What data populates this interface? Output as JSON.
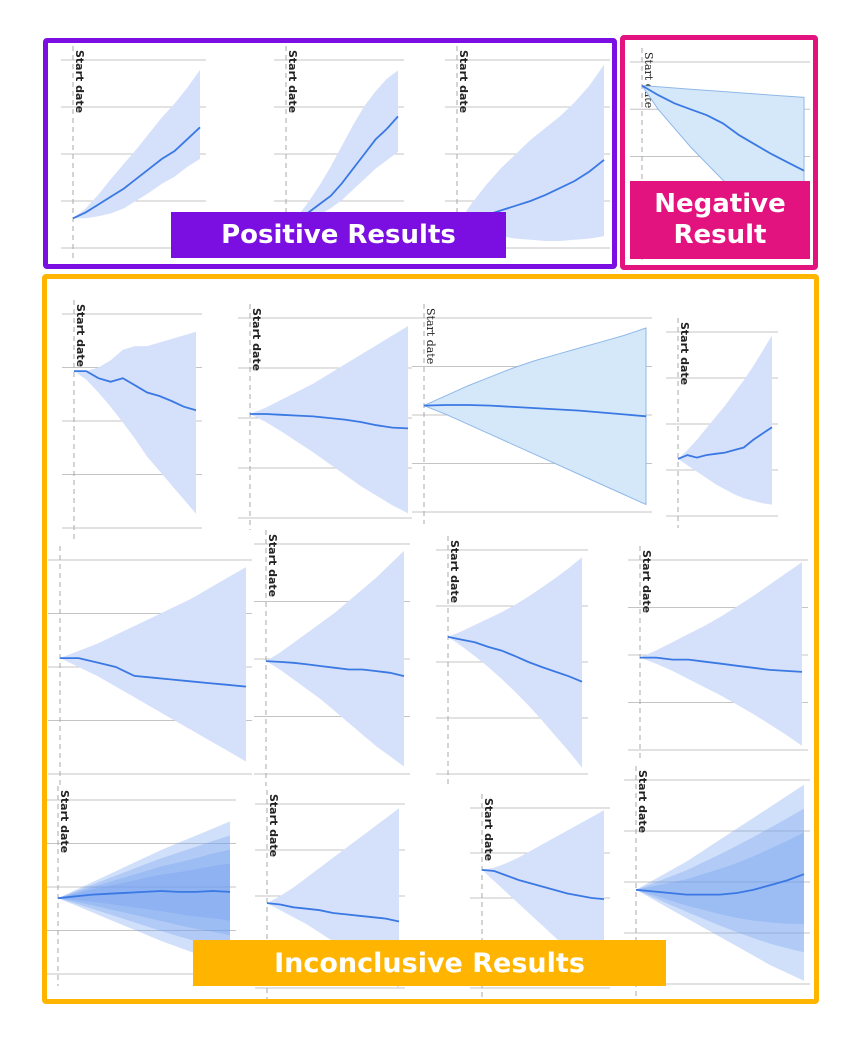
{
  "labels": {
    "positive": "Positive Results",
    "negative_line1": "Negative",
    "negative_line2": "Result",
    "inconclusive": "Inconclusive Results",
    "start_date": "Start date"
  },
  "colors": {
    "positive": "#7b0ee0",
    "negative": "#e2137f",
    "inconclusive": "#ffb500",
    "band_light": "#d5e1fb",
    "band_alt": "#d5e8fa",
    "line": "#3a78e3",
    "grid": "#c4c4c4"
  },
  "chart_data": [
    {
      "group": "positive",
      "type": "area",
      "title": "",
      "xlabel": "",
      "ylabel": "",
      "start_marker": "Start date",
      "x": [
        0,
        1,
        2,
        3,
        4,
        5,
        6,
        7,
        8,
        9,
        10
      ],
      "y": [
        0,
        0.06,
        0.14,
        0.22,
        0.3,
        0.4,
        0.5,
        0.6,
        0.68,
        0.8,
        0.92
      ],
      "lower": [
        0,
        0.0,
        0.02,
        0.05,
        0.1,
        0.18,
        0.26,
        0.35,
        0.42,
        0.52,
        0.6
      ],
      "upper": [
        0,
        0.1,
        0.24,
        0.4,
        0.55,
        0.7,
        0.86,
        1.02,
        1.16,
        1.32,
        1.5
      ],
      "ylim": [
        -0.3,
        1.6
      ]
    },
    {
      "group": "positive",
      "type": "area",
      "title": "",
      "xlabel": "",
      "ylabel": "",
      "start_marker": "Start date",
      "x": [
        0,
        1,
        2,
        3,
        4,
        5,
        6,
        7,
        8,
        9,
        10
      ],
      "y": [
        0,
        0.06,
        0.14,
        0.22,
        0.3,
        0.42,
        0.56,
        0.7,
        0.84,
        0.94,
        1.06
      ],
      "lower": [
        0,
        0.02,
        0.06,
        0.12,
        0.18,
        0.26,
        0.36,
        0.46,
        0.56,
        0.64,
        0.72
      ],
      "upper": [
        0,
        0.1,
        0.24,
        0.4,
        0.58,
        0.78,
        0.98,
        1.16,
        1.3,
        1.42,
        1.5
      ],
      "ylim": [
        -0.2,
        1.6
      ]
    },
    {
      "group": "positive",
      "type": "area",
      "title": "",
      "xlabel": "",
      "ylabel": "",
      "start_marker": "Start date",
      "x": [
        0,
        1,
        2,
        3,
        4,
        5,
        6,
        7,
        8,
        9,
        10
      ],
      "y": [
        0,
        0.04,
        0.08,
        0.12,
        0.16,
        0.2,
        0.25,
        0.31,
        0.37,
        0.45,
        0.55
      ],
      "lower": [
        0,
        -0.04,
        -0.08,
        -0.1,
        -0.12,
        -0.13,
        -0.14,
        -0.14,
        -0.13,
        -0.12,
        -0.1
      ],
      "upper": [
        0,
        0.18,
        0.34,
        0.48,
        0.6,
        0.72,
        0.82,
        0.92,
        1.04,
        1.18,
        1.36
      ],
      "ylim": [
        -0.2,
        1.4
      ]
    },
    {
      "group": "negative",
      "type": "area",
      "title": "",
      "xlabel": "",
      "ylabel": "",
      "start_marker": "Start date",
      "x": [
        0,
        1,
        2,
        3,
        4,
        5,
        6,
        7,
        8,
        9,
        10
      ],
      "y": [
        0,
        -0.08,
        -0.15,
        -0.2,
        -0.25,
        -0.32,
        -0.42,
        -0.5,
        -0.58,
        -0.65,
        -0.72
      ],
      "lower": [
        0,
        -0.2,
        -0.36,
        -0.52,
        -0.66,
        -0.8,
        -0.94,
        -1.05,
        -1.15,
        -1.24,
        -1.32
      ],
      "upper": [
        0,
        -0.01,
        -0.02,
        -0.03,
        -0.04,
        -0.05,
        -0.06,
        -0.07,
        -0.08,
        -0.09,
        -0.1
      ],
      "ylim": [
        -1.4,
        0.2
      ]
    },
    {
      "group": "inconclusive",
      "type": "area",
      "title": "",
      "xlabel": "",
      "ylabel": "",
      "start_marker": "Start date",
      "x": [
        0,
        1,
        2,
        3,
        4,
        5,
        6,
        7,
        8,
        9,
        10
      ],
      "y": [
        0,
        0,
        -0.1,
        -0.15,
        -0.1,
        -0.2,
        -0.3,
        -0.35,
        -0.42,
        -0.5,
        -0.55
      ],
      "lower": [
        0,
        -0.12,
        -0.3,
        -0.5,
        -0.72,
        -0.95,
        -1.2,
        -1.4,
        -1.6,
        -1.8,
        -2.0
      ],
      "upper": [
        0,
        0.0,
        0.05,
        0.15,
        0.3,
        0.35,
        0.35,
        0.4,
        0.45,
        0.5,
        0.55
      ],
      "ylim": [
        -2.2,
        0.8
      ]
    },
    {
      "group": "inconclusive",
      "type": "area",
      "title": "",
      "xlabel": "",
      "ylabel": "",
      "start_marker": "Start date",
      "x": [
        0,
        1,
        2,
        3,
        4,
        5,
        6,
        7,
        8,
        9,
        10
      ],
      "y": [
        0,
        0,
        -0.01,
        -0.02,
        -0.03,
        -0.05,
        -0.07,
        -0.1,
        -0.14,
        -0.17,
        -0.18
      ],
      "lower": [
        0,
        -0.1,
        -0.22,
        -0.35,
        -0.48,
        -0.62,
        -0.76,
        -0.9,
        -1.02,
        -1.14,
        -1.24
      ],
      "upper": [
        0,
        0.08,
        0.18,
        0.28,
        0.38,
        0.5,
        0.62,
        0.74,
        0.86,
        0.98,
        1.1
      ],
      "ylim": [
        -1.3,
        1.2
      ]
    },
    {
      "group": "inconclusive",
      "type": "area",
      "title": "",
      "xlabel": "",
      "ylabel": "",
      "start_marker": "Start date",
      "x": [
        0,
        1,
        2,
        3,
        4,
        5,
        6,
        7,
        8,
        9,
        10
      ],
      "y": [
        0,
        0.01,
        0.01,
        0.0,
        -0.02,
        -0.04,
        -0.06,
        -0.08,
        -0.11,
        -0.14,
        -0.17
      ],
      "lower": [
        0,
        -0.14,
        -0.3,
        -0.46,
        -0.62,
        -0.78,
        -0.94,
        -1.1,
        -1.26,
        -1.42,
        -1.58
      ],
      "upper": [
        0,
        0.16,
        0.32,
        0.46,
        0.6,
        0.72,
        0.82,
        0.92,
        1.02,
        1.12,
        1.24
      ],
      "ylim": [
        -1.7,
        1.4
      ]
    },
    {
      "group": "inconclusive",
      "type": "area",
      "title": "",
      "xlabel": "",
      "ylabel": "",
      "start_marker": "Start date",
      "x": [
        0,
        1,
        2,
        3,
        4,
        5,
        6,
        7,
        8,
        9,
        10
      ],
      "y": [
        0,
        0.06,
        0.02,
        0.06,
        0.08,
        0.1,
        0.14,
        0.18,
        0.3,
        0.4,
        0.5
      ],
      "lower": [
        0,
        -0.1,
        -0.2,
        -0.3,
        -0.4,
        -0.48,
        -0.56,
        -0.62,
        -0.66,
        -0.7,
        -0.72
      ],
      "upper": [
        0,
        0.14,
        0.3,
        0.48,
        0.66,
        0.84,
        1.04,
        1.24,
        1.46,
        1.7,
        1.95
      ],
      "ylim": [
        -0.9,
        2.0
      ]
    },
    {
      "group": "inconclusive",
      "type": "area",
      "title": "",
      "xlabel": "",
      "ylabel": "",
      "start_marker": "",
      "x": [
        0,
        1,
        2,
        3,
        4,
        5,
        6,
        7,
        8,
        9,
        10
      ],
      "y": [
        0,
        0.0,
        -0.05,
        -0.1,
        -0.2,
        -0.22,
        -0.24,
        -0.26,
        -0.28,
        -0.3,
        -0.32
      ],
      "lower": [
        0,
        -0.1,
        -0.2,
        -0.32,
        -0.44,
        -0.56,
        -0.68,
        -0.8,
        -0.92,
        -1.04,
        -1.16
      ],
      "upper": [
        0,
        0.08,
        0.16,
        0.26,
        0.36,
        0.46,
        0.56,
        0.66,
        0.78,
        0.9,
        1.02
      ],
      "ylim": [
        -1.3,
        1.1
      ]
    },
    {
      "group": "inconclusive",
      "type": "area",
      "title": "",
      "xlabel": "",
      "ylabel": "",
      "start_marker": "Start date",
      "x": [
        0,
        1,
        2,
        3,
        4,
        5,
        6,
        7,
        8,
        9,
        10
      ],
      "y": [
        0,
        -0.01,
        -0.02,
        -0.04,
        -0.06,
        -0.08,
        -0.1,
        -0.1,
        -0.12,
        -0.14,
        -0.18
      ],
      "lower": [
        0,
        -0.1,
        -0.22,
        -0.34,
        -0.46,
        -0.6,
        -0.74,
        -0.88,
        -1.02,
        -1.14,
        -1.26
      ],
      "upper": [
        0,
        0.1,
        0.22,
        0.34,
        0.46,
        0.58,
        0.72,
        0.86,
        1.0,
        1.16,
        1.32
      ],
      "ylim": [
        -1.35,
        1.4
      ]
    },
    {
      "group": "inconclusive",
      "type": "area",
      "title": "",
      "xlabel": "",
      "ylabel": "",
      "start_marker": "Start date",
      "x": [
        0,
        1,
        2,
        3,
        4,
        5,
        6,
        7,
        8,
        9,
        10
      ],
      "y": [
        0,
        -0.06,
        -0.12,
        -0.22,
        -0.3,
        -0.42,
        -0.55,
        -0.66,
        -0.76,
        -0.86,
        -0.98
      ],
      "lower": [
        0,
        -0.2,
        -0.42,
        -0.66,
        -0.92,
        -1.2,
        -1.5,
        -1.82,
        -2.16,
        -2.5,
        -2.86
      ],
      "upper": [
        0,
        0.12,
        0.26,
        0.4,
        0.54,
        0.7,
        0.88,
        1.08,
        1.28,
        1.5,
        1.74
      ],
      "ylim": [
        -3.0,
        1.9
      ]
    },
    {
      "group": "inconclusive",
      "type": "area",
      "title": "",
      "xlabel": "",
      "ylabel": "",
      "start_marker": "Start date",
      "x": [
        0,
        1,
        2,
        3,
        4,
        5,
        6,
        7,
        8,
        9,
        10
      ],
      "y": [
        0,
        0.0,
        -0.04,
        -0.04,
        -0.08,
        -0.12,
        -0.16,
        -0.2,
        -0.24,
        -0.26,
        -0.28
      ],
      "lower": [
        0,
        -0.12,
        -0.26,
        -0.42,
        -0.58,
        -0.74,
        -0.92,
        -1.1,
        -1.3,
        -1.5,
        -1.72
      ],
      "upper": [
        0,
        0.14,
        0.3,
        0.46,
        0.62,
        0.8,
        1.0,
        1.2,
        1.42,
        1.64,
        1.86
      ],
      "ylim": [
        -1.8,
        1.9
      ]
    },
    {
      "group": "inconclusive",
      "type": "area",
      "title": "",
      "xlabel": "",
      "ylabel": "",
      "start_marker": "Start date",
      "x": [
        0,
        1,
        2,
        3,
        4,
        5,
        6,
        7,
        8,
        9,
        10
      ],
      "y": [
        0,
        0.02,
        0.04,
        0.05,
        0.06,
        0.07,
        0.08,
        0.07,
        0.07,
        0.08,
        0.07
      ],
      "lower": [
        0,
        -0.08,
        -0.16,
        -0.24,
        -0.32,
        -0.4,
        -0.48,
        -0.55,
        -0.62,
        -0.68,
        -0.74
      ],
      "upper": [
        0,
        0.09,
        0.18,
        0.27,
        0.36,
        0.45,
        0.54,
        0.62,
        0.7,
        0.78,
        0.86
      ],
      "ylim": [
        -0.85,
        1.1
      ]
    },
    {
      "group": "inconclusive",
      "type": "area",
      "title": "",
      "xlabel": "",
      "ylabel": "",
      "start_marker": "Start date",
      "x": [
        0,
        1,
        2,
        3,
        4,
        5,
        6,
        7,
        8,
        9,
        10
      ],
      "y": [
        0,
        -0.02,
        -0.06,
        -0.08,
        -0.1,
        -0.14,
        -0.16,
        -0.18,
        -0.2,
        -0.22,
        -0.26
      ],
      "lower": [
        0,
        -0.1,
        -0.2,
        -0.3,
        -0.42,
        -0.54,
        -0.66,
        -0.78,
        -0.92,
        -1.06,
        -1.2
      ],
      "upper": [
        0,
        0.1,
        0.22,
        0.36,
        0.5,
        0.64,
        0.78,
        0.92,
        1.06,
        1.2,
        1.34
      ],
      "ylim": [
        -1.2,
        1.4
      ]
    },
    {
      "group": "inconclusive",
      "type": "area",
      "title": "",
      "xlabel": "",
      "ylabel": "",
      "start_marker": "Start date",
      "x": [
        0,
        1,
        2,
        3,
        4,
        5,
        6,
        7,
        8,
        9,
        10
      ],
      "y": [
        0,
        -0.02,
        -0.1,
        -0.18,
        -0.24,
        -0.3,
        -0.36,
        -0.42,
        -0.46,
        -0.5,
        -0.52
      ],
      "lower": [
        0,
        -0.2,
        -0.4,
        -0.6,
        -0.8,
        -1.0,
        -1.2,
        -1.4,
        -1.6,
        -1.8,
        -2.0
      ],
      "upper": [
        0,
        0.04,
        0.12,
        0.22,
        0.34,
        0.46,
        0.58,
        0.7,
        0.82,
        0.94,
        1.06
      ],
      "ylim": [
        -2.1,
        1.1
      ]
    },
    {
      "group": "inconclusive",
      "type": "area",
      "title": "",
      "xlabel": "",
      "ylabel": "",
      "start_marker": "Start date",
      "x": [
        0,
        1,
        2,
        3,
        4,
        5,
        6,
        7,
        8,
        9,
        10
      ],
      "y": [
        0,
        -0.02,
        -0.04,
        -0.06,
        -0.06,
        -0.06,
        -0.04,
        0.0,
        0.06,
        0.12,
        0.2
      ],
      "lower": [
        0,
        -0.12,
        -0.24,
        -0.36,
        -0.48,
        -0.6,
        -0.72,
        -0.84,
        -0.96,
        -1.06,
        -1.16
      ],
      "upper": [
        0,
        0.12,
        0.24,
        0.36,
        0.5,
        0.64,
        0.78,
        0.92,
        1.06,
        1.2,
        1.34
      ],
      "ylim": [
        -1.2,
        1.4
      ]
    }
  ]
}
